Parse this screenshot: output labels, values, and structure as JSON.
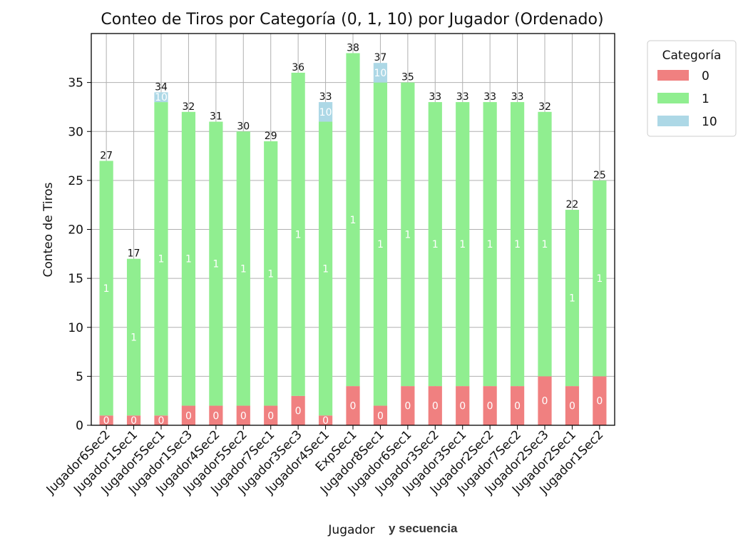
{
  "chart_data": {
    "type": "bar",
    "stacked": true,
    "title": "Conteo de Tiros por Categoría (0, 1, 10) por Jugador (Ordenado)",
    "xlabel": "Jugador",
    "xlabel_suffix": "y secuencia",
    "ylabel": "Conteo de Tiros",
    "ylim": [
      0,
      40
    ],
    "yticks": [
      0,
      5,
      10,
      15,
      20,
      25,
      30,
      35
    ],
    "grid": true,
    "legend": {
      "title": "Categoría",
      "position": "outside-right-top"
    },
    "categories": [
      "Jugador6Sec2",
      "Jugador1Sec1",
      "Jugador5Sec1",
      "Jugador1Sec3",
      "Jugador4Sec2",
      "Jugador5Sec2",
      "Jugador7Sec1",
      "Jugador3Sec3",
      "Jugador4Sec1",
      "ExpSec1",
      "Jugador8Sec1",
      "Jugador6Sec1",
      "Jugador3Sec2",
      "Jugador3Sec1",
      "Jugador2Sec2",
      "Jugador7Sec2",
      "Jugador2Sec3",
      "Jugador2Sec1",
      "Jugador1Sec2"
    ],
    "series": [
      {
        "name": "0",
        "color": "#f08080",
        "values": [
          1,
          1,
          1,
          2,
          2,
          2,
          2,
          3,
          1,
          4,
          2,
          4,
          4,
          4,
          4,
          4,
          5,
          4,
          5
        ]
      },
      {
        "name": "1",
        "color": "#90ee90",
        "values": [
          26,
          16,
          32,
          30,
          29,
          28,
          27,
          33,
          30,
          34,
          33,
          31,
          29,
          29,
          29,
          29,
          27,
          18,
          20
        ]
      },
      {
        "name": "10",
        "color": "#add8e6",
        "values": [
          0,
          0,
          1,
          0,
          0,
          0,
          0,
          0,
          2,
          0,
          2,
          0,
          0,
          0,
          0,
          0,
          0,
          0,
          0
        ]
      }
    ],
    "totals": [
      27,
      17,
      34,
      32,
      31,
      30,
      29,
      36,
      33,
      38,
      37,
      35,
      33,
      33,
      33,
      33,
      32,
      22,
      25
    ]
  }
}
